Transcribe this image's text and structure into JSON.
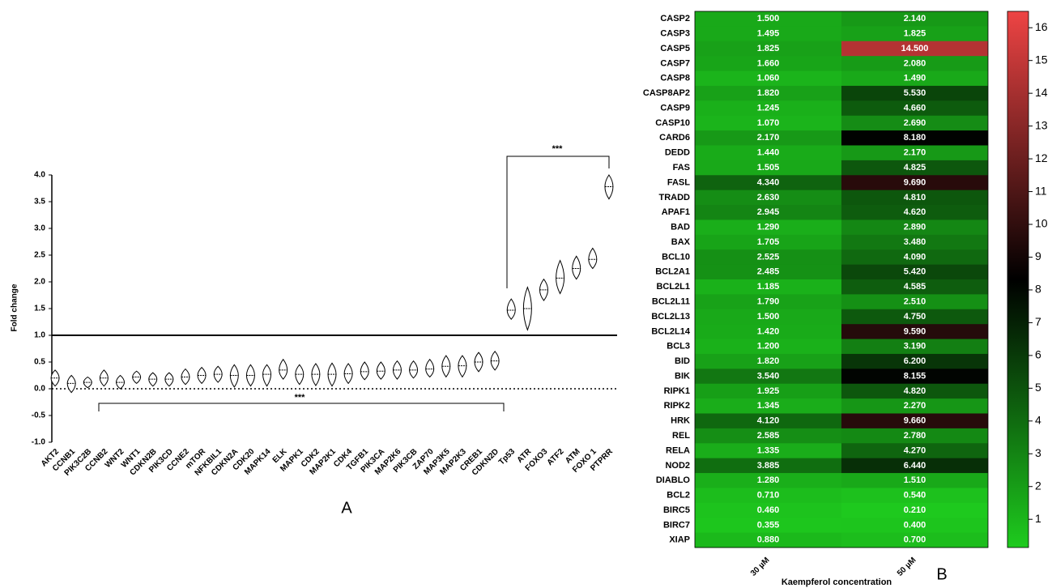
{
  "chart_data": [
    {
      "type": "violin",
      "panel_label": "A",
      "ylabel": "Fold change",
      "categories": [
        "AKT2",
        "CCNB1",
        "PIK3C2B",
        "CCNB2",
        "WNT2",
        "WNT1",
        "CDKN2B",
        "PIK3CD",
        "CCNE2",
        "mTOR",
        "NFKBIL1",
        "CDKN2A",
        "CDK20",
        "MAPK14",
        "ELK",
        "MAPK1",
        "CDK2",
        "MAP2K1",
        "CDK4",
        "TGFB1",
        "PIK3CA",
        "MAP2K6",
        "PIK3CB",
        "ZAP70",
        "MAP3K5",
        "MAP2K3",
        "CREB1",
        "CDKN2D",
        "Tp53",
        "ATR",
        "FOXO3",
        "ATF2",
        "ATM",
        "FOXO 1",
        "PTPRR"
      ],
      "values": [
        0.2,
        0.1,
        0.12,
        0.2,
        0.12,
        0.22,
        0.18,
        0.18,
        0.22,
        0.25,
        0.27,
        0.25,
        0.25,
        0.27,
        0.35,
        0.27,
        0.27,
        0.27,
        0.28,
        0.32,
        0.33,
        0.35,
        0.35,
        0.37,
        0.42,
        0.43,
        0.5,
        0.52,
        1.47,
        1.5,
        1.85,
        2.07,
        2.25,
        2.42,
        3.78
      ],
      "low": [
        0.05,
        -0.07,
        0.02,
        0.05,
        0,
        0.1,
        0.05,
        0.05,
        0.08,
        0.1,
        0.12,
        0.03,
        0.05,
        0.05,
        0.18,
        0.08,
        0.06,
        0.05,
        0.1,
        0.17,
        0.18,
        0.18,
        0.2,
        0.22,
        0.22,
        0.22,
        0.32,
        0.35,
        1.3,
        1.1,
        1.65,
        1.78,
        2.05,
        2.25,
        3.55
      ],
      "high": [
        0.35,
        0.25,
        0.22,
        0.35,
        0.25,
        0.33,
        0.3,
        0.3,
        0.37,
        0.4,
        0.42,
        0.45,
        0.45,
        0.45,
        0.55,
        0.45,
        0.47,
        0.48,
        0.47,
        0.5,
        0.5,
        0.52,
        0.52,
        0.55,
        0.62,
        0.62,
        0.68,
        0.7,
        1.68,
        1.9,
        2.05,
        2.4,
        2.48,
        2.63,
        4.0
      ],
      "ylim": [
        -1,
        4
      ],
      "yticks": [
        {
          "value": 4,
          "label": "4.0"
        },
        {
          "value": 3.5,
          "label": "3.5"
        },
        {
          "value": 3,
          "label": "3.0"
        },
        {
          "value": 2.5,
          "label": "2.5"
        },
        {
          "value": 2,
          "label": "2.0"
        },
        {
          "value": 1.5,
          "label": "1.5"
        },
        {
          "value": 1,
          "label": "1.0"
        },
        {
          "value": 0.5,
          "label": "0.5"
        },
        {
          "value": 0,
          "label": "0.0"
        },
        {
          "value": -0.5,
          "label": "-0.5"
        },
        {
          "value": -1,
          "label": "-1.0"
        }
      ],
      "reference_lines": [
        1,
        0
      ],
      "reference_styles": [
        "solid",
        "dotted"
      ],
      "annotations": [
        "***",
        "***"
      ],
      "color": "#000000"
    },
    {
      "type": "heatmap",
      "panel_label": "B",
      "xlabel": "Kaempferol concentration",
      "columns": [
        "30 µM",
        "50 µM"
      ],
      "rows": [
        "CASP2",
        "CASP3",
        "CASP5",
        "CASP7",
        "CASP8",
        "CASP8AP2",
        "CASP9",
        "CASP10",
        "CARD6",
        "DEDD",
        "FAS",
        "FASL",
        "TRADD",
        "APAF1",
        "BAD",
        "BAX",
        "BCL10",
        "BCL2A1",
        "BCL2L1",
        "BCL2L11",
        "BCL2L13",
        "BCL2L14",
        "BCL3",
        "BID",
        "BIK",
        "RIPK1",
        "RIPK2",
        "HRK",
        "REL",
        "RELA",
        "NOD2",
        "DIABLO",
        "BCL2",
        "BIRC5",
        "BIRC7",
        "XIAP"
      ],
      "values": [
        [
          1.5,
          2.14
        ],
        [
          1.495,
          1.825
        ],
        [
          1.825,
          14.5
        ],
        [
          1.66,
          2.08
        ],
        [
          1.06,
          1.49
        ],
        [
          1.82,
          5.53
        ],
        [
          1.245,
          4.66
        ],
        [
          1.07,
          2.69
        ],
        [
          2.17,
          8.18
        ],
        [
          1.44,
          2.17
        ],
        [
          1.505,
          4.825
        ],
        [
          4.34,
          9.69
        ],
        [
          2.63,
          4.81
        ],
        [
          2.945,
          4.62
        ],
        [
          1.29,
          2.89
        ],
        [
          1.705,
          3.48
        ],
        [
          2.525,
          4.09
        ],
        [
          2.485,
          5.42
        ],
        [
          1.185,
          4.585
        ],
        [
          1.79,
          2.51
        ],
        [
          1.5,
          4.75
        ],
        [
          1.42,
          9.59
        ],
        [
          1.2,
          3.19
        ],
        [
          1.82,
          6.2
        ],
        [
          3.54,
          8.155
        ],
        [
          1.925,
          4.82
        ],
        [
          1.345,
          2.27
        ],
        [
          4.12,
          9.66
        ],
        [
          2.585,
          2.78
        ],
        [
          1.335,
          4.27
        ],
        [
          3.885,
          6.44
        ],
        [
          1.28,
          1.51
        ],
        [
          0.71,
          0.54
        ],
        [
          0.46,
          0.21
        ],
        [
          0.355,
          0.4
        ],
        [
          0.88,
          0.7
        ]
      ],
      "value_labels": [
        [
          "1.500",
          "2.140"
        ],
        [
          "1.495",
          "1.825"
        ],
        [
          "1.825",
          "14.500"
        ],
        [
          "1.660",
          "2.080"
        ],
        [
          "1.060",
          "1.490"
        ],
        [
          "1.820",
          "5.530"
        ],
        [
          "1.245",
          "4.660"
        ],
        [
          "1.070",
          "2.690"
        ],
        [
          "2.170",
          "8.180"
        ],
        [
          "1.440",
          "2.170"
        ],
        [
          "1.505",
          "4.825"
        ],
        [
          "4.340",
          "9.690"
        ],
        [
          "2.630",
          "4.810"
        ],
        [
          "2.945",
          "4.620"
        ],
        [
          "1.290",
          "2.890"
        ],
        [
          "1.705",
          "3.480"
        ],
        [
          "2.525",
          "4.090"
        ],
        [
          "2.485",
          "5.420"
        ],
        [
          "1.185",
          "4.585"
        ],
        [
          "1.790",
          "2.510"
        ],
        [
          "1.500",
          "4.750"
        ],
        [
          "1.420",
          "9.590"
        ],
        [
          "1.200",
          "3.190"
        ],
        [
          "1.820",
          "6.200"
        ],
        [
          "3.540",
          "8.155"
        ],
        [
          "1.925",
          "4.820"
        ],
        [
          "1.345",
          "2.270"
        ],
        [
          "4.120",
          "9.660"
        ],
        [
          "2.585",
          "2.780"
        ],
        [
          "1.335",
          "4.270"
        ],
        [
          "3.885",
          "6.440"
        ],
        [
          "1.280",
          "1.510"
        ],
        [
          "0.710",
          "0.540"
        ],
        [
          "0.460",
          "0.210"
        ],
        [
          "0.355",
          "0.400"
        ],
        [
          "0.880",
          "0.700"
        ]
      ],
      "clim": [
        0.14,
        16.5
      ],
      "colorbar_ticks": [
        1,
        2,
        3,
        4,
        5,
        6,
        7,
        8,
        9,
        10,
        11,
        12,
        13,
        14,
        15,
        16
      ],
      "colormap": [
        "#1ecb1e",
        "#000000",
        "#ee4444"
      ]
    }
  ]
}
